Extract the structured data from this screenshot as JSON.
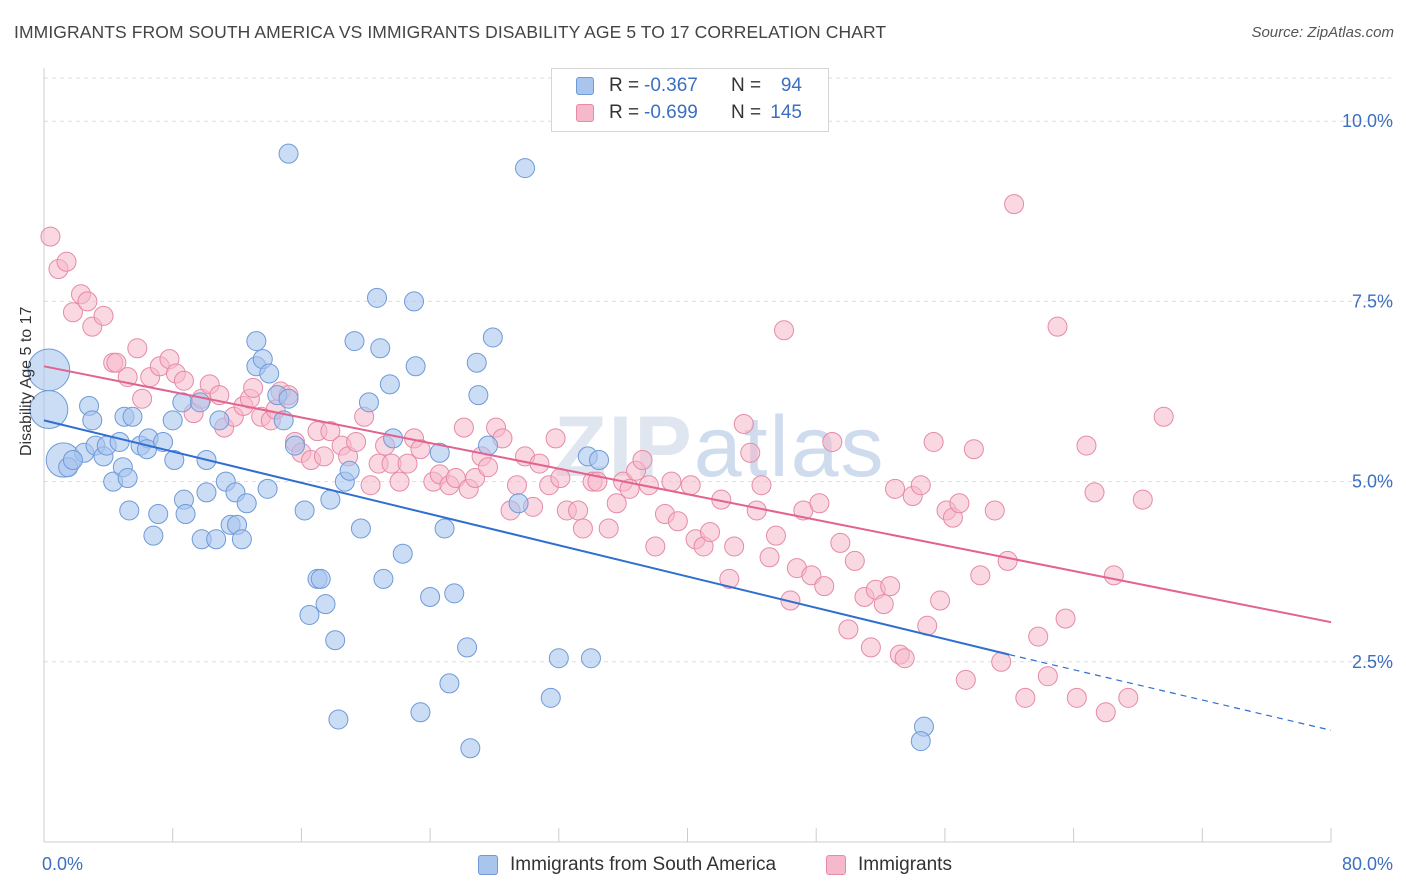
{
  "title": "IMMIGRANTS FROM SOUTH AMERICA VS IMMIGRANTS DISABILITY AGE 5 TO 17 CORRELATION CHART",
  "source": "Source: ZipAtlas.com",
  "watermark": {
    "zip": "ZIP",
    "atlas": "atlas"
  },
  "legend": {
    "r_label": "R =",
    "n_label": "N =",
    "series1": {
      "r": "-0.367",
      "n": "94"
    },
    "series2": {
      "r": "-0.699",
      "n": "145"
    }
  },
  "bottom_legend": {
    "series1": "Immigrants from South America",
    "series2": "Immigrants"
  },
  "colors": {
    "blue_fill": "#a9c5ee",
    "blue_stroke": "#6f9ad8",
    "blue_line": "#2f6fcf",
    "pink_fill": "#f6b8cb",
    "pink_stroke": "#e68aa7",
    "pink_line": "#e2638f",
    "tick_label": "#3d6fc0"
  },
  "chart_data": {
    "type": "scatter",
    "title": "IMMIGRANTS FROM SOUTH AMERICA VS IMMIGRANTS DISABILITY AGE 5 TO 17 CORRELATION CHART",
    "xlabel": "",
    "ylabel": "Disability Age 5 to 17",
    "xlim": [
      0,
      80
    ],
    "ylim": [
      0,
      10.6
    ],
    "x_tick_labels": [
      "0.0%",
      "80.0%"
    ],
    "y_ticks": [
      2.5,
      5.0,
      7.5,
      10.0
    ],
    "y_tick_labels": [
      "2.5%",
      "5.0%",
      "7.5%",
      "10.0%"
    ],
    "grid": true,
    "series": [
      {
        "name": "Immigrants from South America",
        "r": -0.367,
        "n": 94,
        "trend": {
          "x0": 0,
          "y0": 5.85,
          "x1": 60,
          "y1": 2.6,
          "dash_x1": 80,
          "dash_y1": 1.55
        },
        "points": [
          [
            0.3,
            6.55,
            2.2
          ],
          [
            0.3,
            6.0,
            2.0
          ],
          [
            1.2,
            5.3,
            1.8
          ],
          [
            1.5,
            5.2,
            1
          ],
          [
            2.5,
            5.4,
            1
          ],
          [
            1.8,
            5.3,
            1
          ],
          [
            2.8,
            6.05,
            1
          ],
          [
            3.0,
            5.85,
            1
          ],
          [
            3.2,
            5.5,
            1
          ],
          [
            3.7,
            5.35,
            1
          ],
          [
            3.9,
            5.5,
            1
          ],
          [
            4.3,
            5.0,
            1
          ],
          [
            4.7,
            5.55,
            1
          ],
          [
            5.0,
            5.9,
            1
          ],
          [
            4.9,
            5.2,
            1
          ],
          [
            5.5,
            5.9,
            1
          ],
          [
            5.2,
            5.05,
            1
          ],
          [
            5.3,
            4.6,
            1
          ],
          [
            6.0,
            5.5,
            1
          ],
          [
            6.5,
            5.6,
            1
          ],
          [
            6.4,
            5.45,
            1
          ],
          [
            6.8,
            4.25,
            1
          ],
          [
            7.1,
            4.55,
            1
          ],
          [
            7.4,
            5.55,
            1
          ],
          [
            8.0,
            5.85,
            1
          ],
          [
            8.1,
            5.3,
            1
          ],
          [
            8.6,
            6.1,
            1
          ],
          [
            8.7,
            4.75,
            1
          ],
          [
            8.8,
            4.55,
            1
          ],
          [
            9.7,
            6.1,
            1
          ],
          [
            9.8,
            4.2,
            1
          ],
          [
            10.1,
            5.3,
            1
          ],
          [
            10.1,
            4.85,
            1
          ],
          [
            10.7,
            4.2,
            1
          ],
          [
            10.9,
            5.85,
            1
          ],
          [
            11.3,
            5.0,
            1
          ],
          [
            11.6,
            4.4,
            1
          ],
          [
            11.9,
            4.85,
            1
          ],
          [
            12.0,
            4.4,
            1
          ],
          [
            12.3,
            4.2,
            1
          ],
          [
            12.6,
            4.7,
            1
          ],
          [
            13.2,
            6.6,
            1
          ],
          [
            13.2,
            6.95,
            1
          ],
          [
            13.6,
            6.7,
            1
          ],
          [
            13.9,
            4.9,
            1
          ],
          [
            14.0,
            6.5,
            1
          ],
          [
            14.5,
            6.2,
            1
          ],
          [
            14.9,
            5.85,
            1
          ],
          [
            15.2,
            6.15,
            1
          ],
          [
            15.2,
            9.55,
            1
          ],
          [
            15.6,
            5.5,
            1
          ],
          [
            16.2,
            4.6,
            1
          ],
          [
            16.5,
            3.15,
            1
          ],
          [
            17.0,
            3.65,
            1
          ],
          [
            17.2,
            3.65,
            1
          ],
          [
            17.5,
            3.3,
            1
          ],
          [
            17.8,
            4.75,
            1
          ],
          [
            18.1,
            2.8,
            1
          ],
          [
            18.3,
            1.7,
            1
          ],
          [
            18.7,
            5.0,
            1
          ],
          [
            19.0,
            5.15,
            1
          ],
          [
            19.3,
            6.95,
            1
          ],
          [
            19.7,
            4.35,
            1
          ],
          [
            20.2,
            6.1,
            1
          ],
          [
            20.7,
            7.55,
            1
          ],
          [
            20.9,
            6.85,
            1
          ],
          [
            21.1,
            3.65,
            1
          ],
          [
            21.5,
            6.35,
            1
          ],
          [
            21.7,
            5.6,
            1
          ],
          [
            22.3,
            4.0,
            1
          ],
          [
            23.0,
            7.5,
            1
          ],
          [
            23.1,
            6.6,
            1
          ],
          [
            23.4,
            1.8,
            1
          ],
          [
            24.0,
            3.4,
            1
          ],
          [
            24.6,
            5.4,
            1
          ],
          [
            24.9,
            4.35,
            1
          ],
          [
            25.2,
            2.2,
            1
          ],
          [
            25.5,
            3.45,
            1
          ],
          [
            26.3,
            2.7,
            1
          ],
          [
            26.5,
            1.3,
            1
          ],
          [
            26.9,
            6.65,
            1
          ],
          [
            27.0,
            6.2,
            1
          ],
          [
            27.6,
            5.5,
            1
          ],
          [
            27.9,
            7.0,
            1
          ],
          [
            29.5,
            4.7,
            1
          ],
          [
            29.9,
            9.35,
            1
          ],
          [
            31.5,
            2.0,
            1
          ],
          [
            32.0,
            2.55,
            1
          ],
          [
            33.8,
            5.35,
            1
          ],
          [
            34.0,
            2.55,
            1
          ],
          [
            54.7,
            1.6,
            1
          ],
          [
            54.5,
            1.4,
            1
          ],
          [
            34.5,
            5.3,
            1
          ]
        ]
      },
      {
        "name": "Immigrants",
        "r": -0.699,
        "n": 145,
        "trend": {
          "x0": 0,
          "y0": 6.6,
          "x1": 80,
          "y1": 3.05
        },
        "points": [
          [
            0.4,
            8.4,
            1
          ],
          [
            0.9,
            7.95,
            1
          ],
          [
            1.4,
            8.05,
            1
          ],
          [
            1.8,
            7.35,
            1
          ],
          [
            2.3,
            7.6,
            1
          ],
          [
            2.7,
            7.5,
            1
          ],
          [
            3.0,
            7.15,
            1
          ],
          [
            3.7,
            7.3,
            1
          ],
          [
            4.3,
            6.65,
            1
          ],
          [
            4.5,
            6.65,
            1
          ],
          [
            5.2,
            6.45,
            1
          ],
          [
            5.8,
            6.85,
            1
          ],
          [
            6.1,
            6.15,
            1
          ],
          [
            6.6,
            6.45,
            1
          ],
          [
            7.2,
            6.6,
            1
          ],
          [
            7.8,
            6.7,
            1
          ],
          [
            8.2,
            6.5,
            1
          ],
          [
            8.7,
            6.4,
            1
          ],
          [
            9.3,
            5.95,
            1
          ],
          [
            9.8,
            6.15,
            1
          ],
          [
            10.3,
            6.35,
            1
          ],
          [
            10.9,
            6.2,
            1
          ],
          [
            11.2,
            5.75,
            1
          ],
          [
            11.8,
            5.9,
            1
          ],
          [
            12.4,
            6.05,
            1
          ],
          [
            12.8,
            6.15,
            1
          ],
          [
            13.0,
            6.3,
            1
          ],
          [
            13.5,
            5.9,
            1
          ],
          [
            14.1,
            5.85,
            1
          ],
          [
            14.4,
            6.0,
            1
          ],
          [
            14.7,
            6.25,
            1
          ],
          [
            15.2,
            6.2,
            1
          ],
          [
            15.6,
            5.55,
            1
          ],
          [
            16.0,
            5.4,
            1
          ],
          [
            16.6,
            5.3,
            1
          ],
          [
            17.0,
            5.7,
            1
          ],
          [
            17.4,
            5.35,
            1
          ],
          [
            17.8,
            5.7,
            1
          ],
          [
            18.5,
            5.5,
            1
          ],
          [
            18.9,
            5.35,
            1
          ],
          [
            19.4,
            5.55,
            1
          ],
          [
            19.9,
            5.9,
            1
          ],
          [
            20.3,
            4.95,
            1
          ],
          [
            20.8,
            5.25,
            1
          ],
          [
            21.2,
            5.5,
            1
          ],
          [
            21.6,
            5.25,
            1
          ],
          [
            22.1,
            5.0,
            1
          ],
          [
            22.6,
            5.25,
            1
          ],
          [
            23.0,
            5.6,
            1
          ],
          [
            23.4,
            5.45,
            1
          ],
          [
            24.2,
            5.0,
            1
          ],
          [
            24.6,
            5.1,
            1
          ],
          [
            25.2,
            4.95,
            1
          ],
          [
            25.6,
            5.05,
            1
          ],
          [
            26.1,
            5.75,
            1
          ],
          [
            26.4,
            4.9,
            1
          ],
          [
            26.8,
            5.05,
            1
          ],
          [
            27.2,
            5.35,
            1
          ],
          [
            27.6,
            5.2,
            1
          ],
          [
            28.1,
            5.75,
            1
          ],
          [
            28.5,
            5.6,
            1
          ],
          [
            29.0,
            4.6,
            1
          ],
          [
            29.4,
            4.95,
            1
          ],
          [
            29.9,
            5.35,
            1
          ],
          [
            30.4,
            4.65,
            1
          ],
          [
            30.8,
            5.25,
            1
          ],
          [
            31.4,
            4.95,
            1
          ],
          [
            31.8,
            5.6,
            1
          ],
          [
            32.1,
            5.05,
            1
          ],
          [
            32.5,
            4.6,
            1
          ],
          [
            33.2,
            4.6,
            1
          ],
          [
            33.5,
            4.35,
            1
          ],
          [
            34.1,
            5.0,
            1
          ],
          [
            34.4,
            5.0,
            1
          ],
          [
            35.1,
            4.35,
            1
          ],
          [
            35.6,
            4.7,
            1
          ],
          [
            36.0,
            5.0,
            1
          ],
          [
            36.4,
            4.9,
            1
          ],
          [
            36.8,
            5.15,
            1
          ],
          [
            37.2,
            5.3,
            1
          ],
          [
            37.6,
            4.95,
            1
          ],
          [
            38.0,
            4.1,
            1
          ],
          [
            38.6,
            4.55,
            1
          ],
          [
            39.0,
            5.0,
            1
          ],
          [
            39.4,
            4.45,
            1
          ],
          [
            40.2,
            4.95,
            1
          ],
          [
            40.5,
            4.2,
            1
          ],
          [
            41.0,
            4.1,
            1
          ],
          [
            41.4,
            4.3,
            1
          ],
          [
            42.1,
            4.75,
            1
          ],
          [
            42.6,
            3.65,
            1
          ],
          [
            42.9,
            4.1,
            1
          ],
          [
            43.5,
            5.8,
            1
          ],
          [
            43.9,
            5.4,
            1
          ],
          [
            44.3,
            4.6,
            1
          ],
          [
            44.6,
            4.95,
            1
          ],
          [
            45.1,
            3.95,
            1
          ],
          [
            45.5,
            4.25,
            1
          ],
          [
            46.0,
            7.1,
            1
          ],
          [
            46.4,
            3.35,
            1
          ],
          [
            46.8,
            3.8,
            1
          ],
          [
            47.2,
            4.6,
            1
          ],
          [
            47.7,
            3.7,
            1
          ],
          [
            48.2,
            4.7,
            1
          ],
          [
            48.5,
            3.55,
            1
          ],
          [
            49.0,
            5.55,
            1
          ],
          [
            49.5,
            4.15,
            1
          ],
          [
            50.0,
            2.95,
            1
          ],
          [
            50.4,
            3.9,
            1
          ],
          [
            51.0,
            3.4,
            1
          ],
          [
            51.4,
            2.7,
            1
          ],
          [
            51.7,
            3.5,
            1
          ],
          [
            52.2,
            3.3,
            1
          ],
          [
            52.6,
            3.55,
            1
          ],
          [
            53.2,
            2.6,
            1
          ],
          [
            53.5,
            2.55,
            1
          ],
          [
            54.0,
            4.8,
            1
          ],
          [
            54.5,
            4.95,
            1
          ],
          [
            54.9,
            3.0,
            1
          ],
          [
            55.3,
            5.55,
            1
          ],
          [
            55.7,
            3.35,
            1
          ],
          [
            56.1,
            4.6,
            1
          ],
          [
            56.5,
            4.5,
            1
          ],
          [
            56.9,
            4.7,
            1
          ],
          [
            57.3,
            2.25,
            1
          ],
          [
            57.8,
            5.45,
            1
          ],
          [
            58.2,
            3.7,
            1
          ],
          [
            59.1,
            4.6,
            1
          ],
          [
            59.5,
            2.5,
            1
          ],
          [
            59.9,
            3.9,
            1
          ],
          [
            60.3,
            8.85,
            1
          ],
          [
            61.0,
            2.0,
            1
          ],
          [
            61.8,
            2.85,
            1
          ],
          [
            62.4,
            2.3,
            1
          ],
          [
            63.0,
            7.15,
            1
          ],
          [
            63.5,
            3.1,
            1
          ],
          [
            64.2,
            2.0,
            1
          ],
          [
            64.8,
            5.5,
            1
          ],
          [
            65.3,
            4.85,
            1
          ],
          [
            66.0,
            1.8,
            1
          ],
          [
            66.5,
            3.7,
            1
          ],
          [
            67.4,
            2.0,
            1
          ],
          [
            68.3,
            4.75,
            1
          ],
          [
            69.6,
            5.9,
            1
          ],
          [
            52.9,
            4.9,
            1
          ]
        ]
      }
    ]
  }
}
